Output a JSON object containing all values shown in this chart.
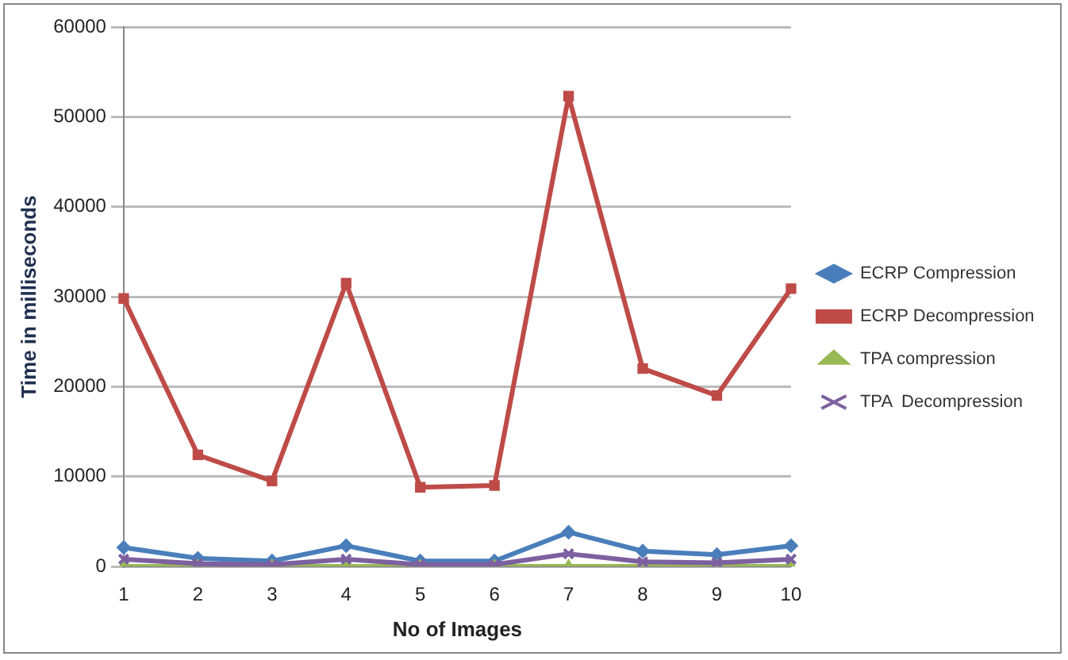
{
  "chart_data": {
    "type": "line",
    "xlabel": "No of Images",
    "ylabel": "Time in milliseconds",
    "categories": [
      "1",
      "2",
      "3",
      "4",
      "5",
      "6",
      "7",
      "8",
      "9",
      "10"
    ],
    "series": [
      {
        "name": "ECRP Compression",
        "color": "#4a7ebb",
        "marker": "diamond",
        "values": [
          2100,
          900,
          600,
          2300,
          600,
          600,
          3800,
          1700,
          1300,
          2300
        ]
      },
      {
        "name": "ECRP Decompression",
        "color": "#be4b48",
        "marker": "square",
        "values": [
          29800,
          12400,
          9500,
          31500,
          8800,
          9000,
          52300,
          22000,
          19000,
          30900
        ]
      },
      {
        "name": "TPA compression",
        "color": "#98b954",
        "marker": "triangle",
        "values": [
          0,
          0,
          0,
          0,
          0,
          0,
          0,
          0,
          0,
          0
        ]
      },
      {
        "name": "TPA  Decompression",
        "color": "#7d60a0",
        "marker": "cross",
        "values": [
          800,
          300,
          200,
          800,
          200,
          200,
          1400,
          500,
          400,
          800
        ]
      }
    ],
    "ylim": [
      0,
      60000
    ],
    "yticks": [
      0,
      10000,
      20000,
      30000,
      40000,
      50000,
      60000
    ],
    "grid": "y",
    "legend": "right"
  }
}
